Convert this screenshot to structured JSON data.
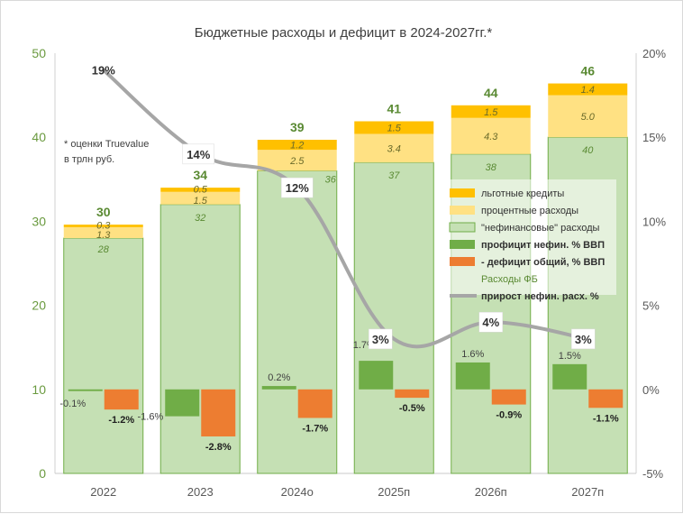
{
  "chart_data": {
    "type": "bar",
    "title": "Бюджетные расходы и дефицит в 2024-2027гг.*",
    "note_line1": "* оценки Truevalue",
    "note_line2": "в трлн руб.",
    "categories": [
      "2022",
      "2023",
      "2024о",
      "2025п",
      "2026п",
      "2027п"
    ],
    "ylim_left": [
      0,
      50
    ],
    "yticks_left": [
      0,
      10,
      20,
      30,
      40,
      50
    ],
    "ylim_right": [
      -5,
      20
    ],
    "yticks_right": [
      -5,
      0,
      5,
      10,
      15,
      20
    ],
    "yticks_right_labels": [
      "-5%",
      "0%",
      "5%",
      "10%",
      "15%",
      "20%"
    ],
    "series": [
      {
        "name": "\"нефинансовые\" расходы",
        "kind": "stack",
        "color": "#c5e0b4",
        "edge": "#70ad47",
        "values": [
          28,
          32,
          36,
          37,
          38,
          40
        ],
        "labels": [
          "28",
          "32",
          "36",
          "37",
          "38",
          "40"
        ]
      },
      {
        "name": "процентные расходы",
        "kind": "stack",
        "color": "#ffe183",
        "values": [
          1.3,
          1.5,
          2.5,
          3.4,
          4.3,
          5.0
        ],
        "labels": [
          "1.3",
          "1.5",
          "2.5",
          "3.4",
          "4.3",
          "5.0"
        ]
      },
      {
        "name": "льготные кредиты",
        "kind": "stack",
        "color": "#ffc000",
        "values": [
          0.3,
          0.5,
          1.2,
          1.5,
          1.5,
          1.4
        ],
        "labels": [
          "0.3",
          "0.5",
          "1.2",
          "1.5",
          "1.5",
          "1.4"
        ]
      },
      {
        "name": "профицит нефин. % ВВП",
        "kind": "pct",
        "color": "#70ad47",
        "values": [
          -0.1,
          -1.6,
          0.2,
          1.7,
          1.6,
          1.5
        ],
        "labels": [
          "-0.1%",
          "-1.6%",
          "0.2%",
          "1.7%",
          "1.6%",
          "1.5%"
        ]
      },
      {
        "name": "- дефицит общий, % ВВП",
        "kind": "pct",
        "color": "#ed7d31",
        "values": [
          -1.2,
          -2.8,
          -1.7,
          -0.5,
          -0.9,
          -1.1
        ],
        "labels": [
          "-1.2%",
          "-2.8%",
          "-1.7%",
          "-0.5%",
          "-0.9%",
          "-1.1%"
        ]
      },
      {
        "name": "прирост нефин. расх. %",
        "kind": "line",
        "color": "#a6a6a6",
        "values": [
          19,
          14,
          12,
          3,
          4,
          3
        ],
        "labels": [
          "19%",
          "14%",
          "12%",
          "3%",
          "4%",
          "3%"
        ]
      }
    ],
    "totals": [
      "30",
      "34",
      "39",
      "41",
      "44",
      "46"
    ],
    "legend": {
      "position": "right",
      "items": [
        {
          "label": "льготные кредиты",
          "color": "#ffc000",
          "style": "box"
        },
        {
          "label": "процентные расходы",
          "color": "#ffe183",
          "style": "box"
        },
        {
          "label": "\"нефинансовые\" расходы",
          "color": "#c5e0b4",
          "style": "box"
        },
        {
          "label": "профицит нефин. % ВВП",
          "color": "#70ad47",
          "style": "boxbold"
        },
        {
          "label": "- дефицит общий, % ВВП",
          "color": "#ed7d31",
          "style": "boxbold"
        },
        {
          "label": "Расходы ФБ",
          "color": "#5a8a33",
          "style": "text"
        },
        {
          "label": "прирост нефин. расх. %",
          "color": "#a6a6a6",
          "style": "line"
        }
      ]
    }
  }
}
